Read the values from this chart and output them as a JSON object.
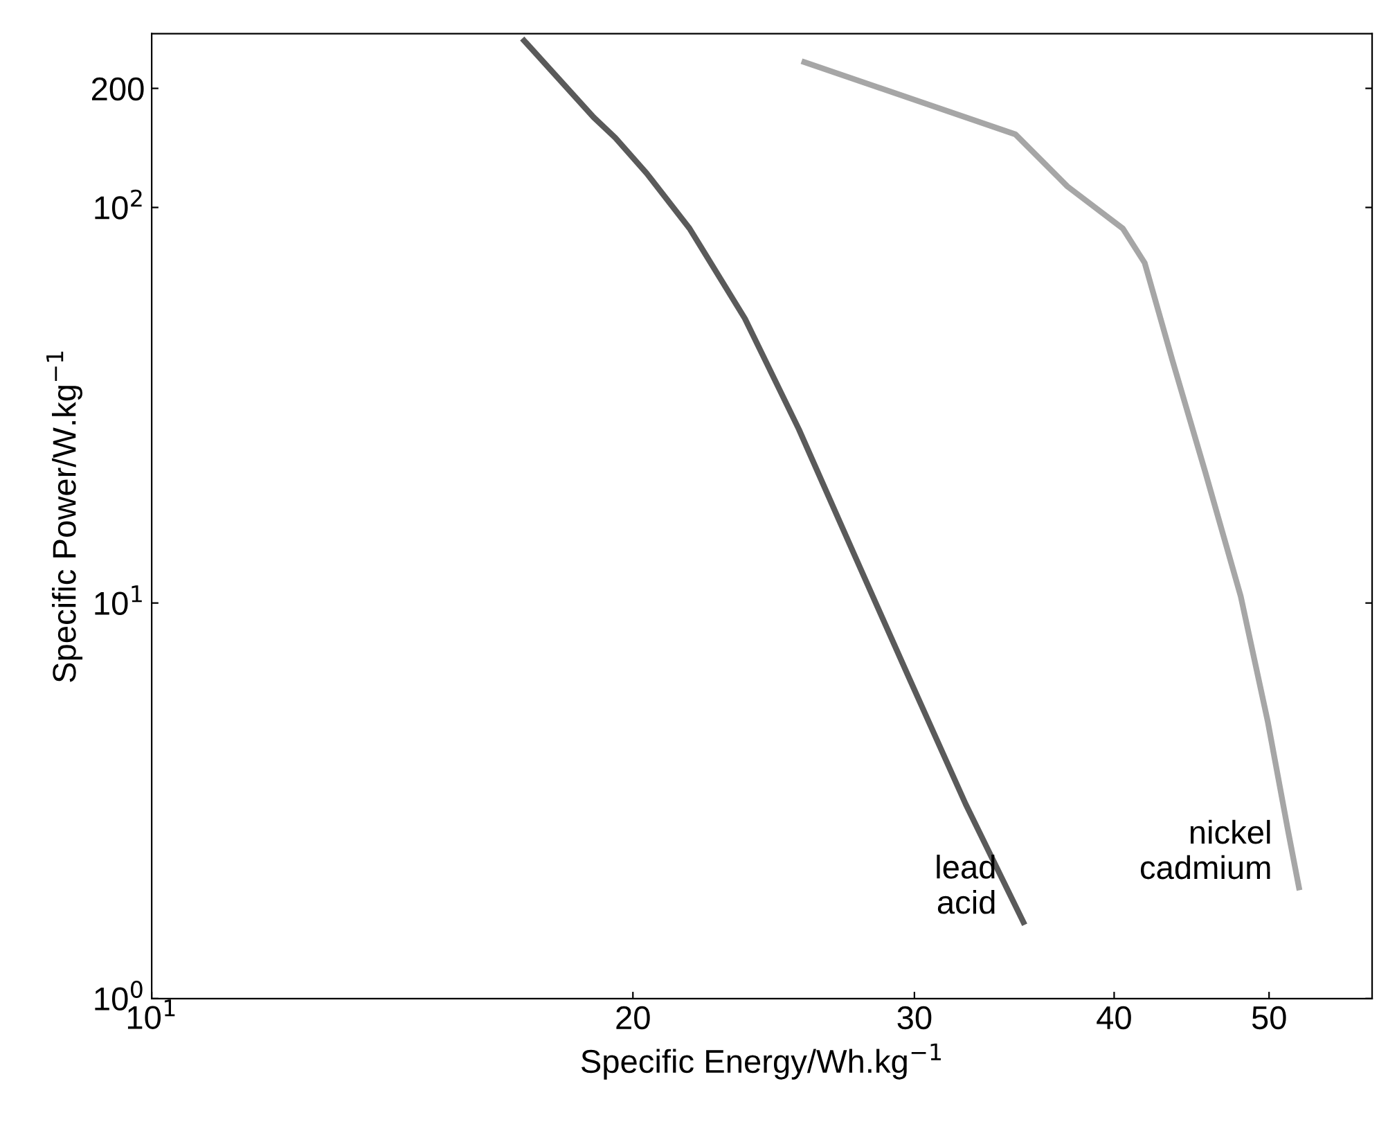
{
  "chart_data": {
    "type": "line",
    "xlabel": "Specific Energy/Wh.kg$^{−1}$",
    "ylabel": "Specific Power/W.kg$^{−1}$",
    "log": "xy",
    "grid": false,
    "legend": false,
    "marker": "none",
    "line_style": "solid",
    "xlim": [
      10,
      58
    ],
    "ylim": [
      1,
      275
    ],
    "xticks": [
      {
        "value": 10,
        "label": "10$^{1}$"
      },
      20,
      30,
      40,
      50
    ],
    "yticks": [
      {
        "value": 1,
        "label": "10$^{0}$"
      },
      {
        "value": 10,
        "label": "10$^{1}$"
      },
      {
        "value": 100,
        "label": "10$^{2}$"
      },
      200
    ],
    "series": [
      {
        "name": "lead\nacid",
        "color": "#5a5a5a",
        "x": [
          17.1,
          18.9,
          19.5,
          20.4,
          21.7,
          23.5,
          25.4,
          27.5,
          29.8,
          32.3,
          35.1
        ],
        "values": [
          264,
          169,
          150,
          122,
          88.5,
          52.4,
          27.5,
          13.3,
          6.41,
          3.1,
          1.56
        ]
      },
      {
        "name": "nickel\ncadmium",
        "color": "#a6a6a6",
        "x": [
          25.6,
          34.7,
          37.4,
          40.5,
          41.8,
          43.5,
          45.6,
          48.0,
          49.9,
          51.4,
          52.2
        ],
        "values": [
          233,
          153,
          113,
          88.5,
          72.4,
          41.1,
          21.5,
          10.4,
          5.03,
          2.64,
          1.91
        ]
      }
    ]
  }
}
